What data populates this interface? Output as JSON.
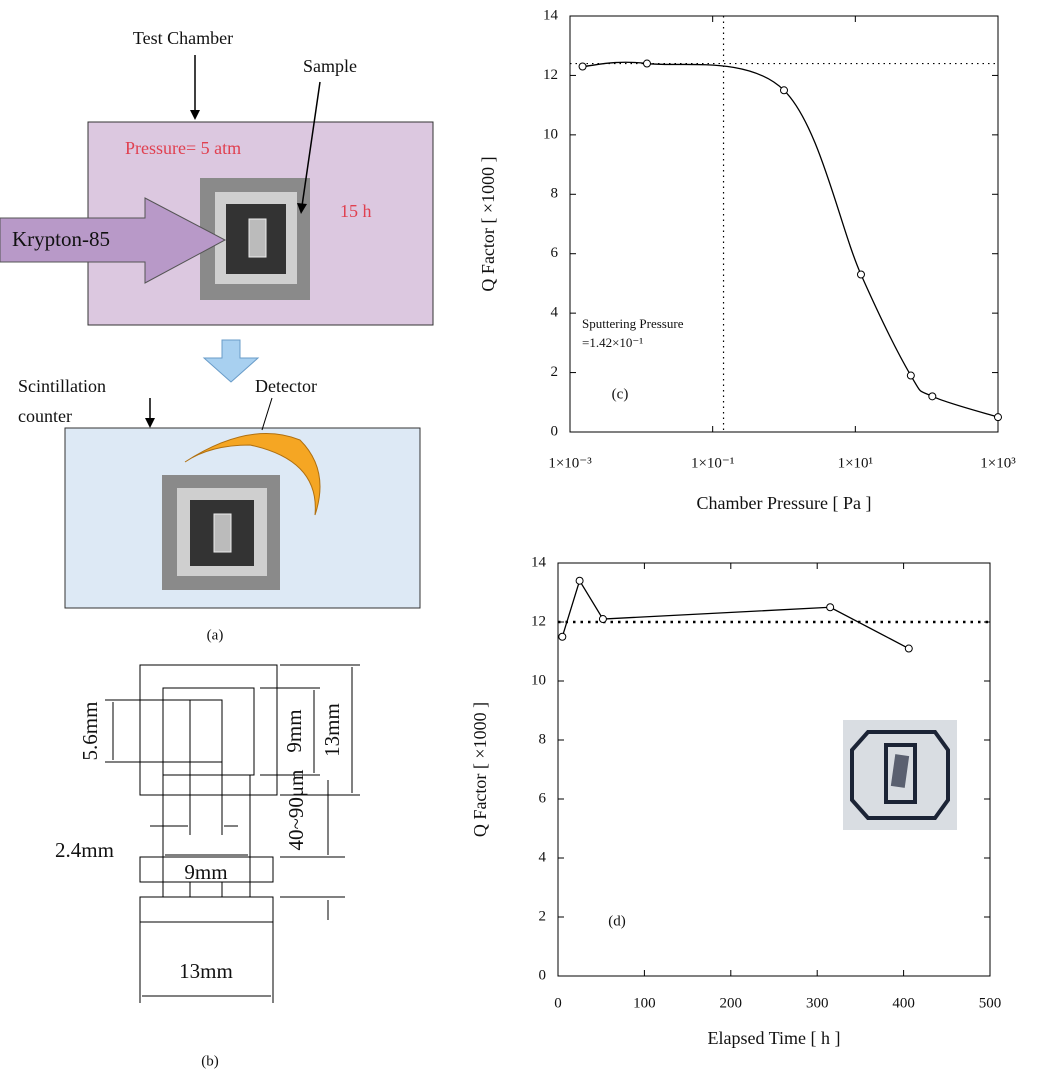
{
  "diagram_a": {
    "test_chamber": "Test Chamber",
    "sample": "Sample",
    "pressure": "Pressure= 5 atm",
    "source": "Krypton-85",
    "duration": "15 h",
    "counter": [
      "Scintillation",
      "counter"
    ],
    "detector": "Detector",
    "caption": "(a)"
  },
  "diagram_b": {
    "dims": [
      "5.6mm",
      "9mm",
      "13mm",
      "2.4mm",
      "9mm",
      "40~90μm",
      "13mm"
    ],
    "caption": "(b)"
  },
  "chart_data": [
    {
      "type": "line",
      "x_label": "Chamber Pressure [ Pa ]",
      "y_label": "Q Factor [ ×1000 ]",
      "panel_label": "(c)",
      "annotation": [
        "Sputtering Pressure",
        "=1.42×10⁻¹"
      ],
      "x_scale": "log",
      "marker": "open-circle",
      "color": "#000000",
      "x": [
        0.0015,
        0.012,
        1,
        12,
        60,
        120,
        1000
      ],
      "values": [
        12.3,
        12.4,
        11.5,
        5.3,
        1.9,
        1.2,
        0.5
      ],
      "xlim": [
        0.001,
        1000
      ],
      "xticks": [
        {
          "value": 0.001,
          "label": "1×10⁻³"
        },
        {
          "value": 0.1,
          "label": "1×10⁻¹"
        },
        {
          "value": 10,
          "label": "1×10¹"
        },
        {
          "value": 1000,
          "label": "1×10³"
        }
      ],
      "ylim": [
        0,
        14
      ],
      "yticks": [
        0,
        2,
        4,
        6,
        8,
        10,
        12,
        14
      ],
      "reference_lines": {
        "x": 0.142,
        "y": 12.4
      }
    },
    {
      "type": "line",
      "x_label": "Elapsed Time [ h ]",
      "y_label": "Q Factor [ ×1000 ]",
      "panel_label": "(d)",
      "x_scale": "linear",
      "marker": "open-circle",
      "color": "#000000",
      "x": [
        5,
        25,
        52,
        315,
        406
      ],
      "values": [
        11.5,
        13.4,
        12.1,
        12.5,
        11.1
      ],
      "xlim": [
        0,
        500
      ],
      "xticks": [
        0,
        100,
        200,
        300,
        400,
        500
      ],
      "ylim": [
        0,
        14
      ],
      "yticks": [
        0,
        2,
        4,
        6,
        8,
        10,
        12,
        14
      ],
      "reference_lines": {
        "y": 12
      }
    }
  ]
}
